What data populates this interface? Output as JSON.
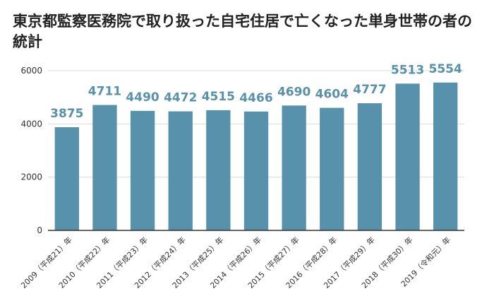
{
  "chart_data": {
    "type": "bar",
    "title": "東京都監察医務院で取り扱った自宅住居で亡くなった単身世帯の者の統計",
    "xlabel": "",
    "ylabel": "",
    "categories": [
      "2009（平成21）年",
      "2010（平成22）年",
      "2011（平成23）年",
      "2012（平成24）年",
      "2013（平成25）年",
      "2014（平成26）年",
      "2015（平成27）年",
      "2016（平成28）年",
      "2017（平成29）年",
      "2018（平成30）年",
      "2019（令和元）年"
    ],
    "values": [
      3875,
      4711,
      4490,
      4472,
      4515,
      4466,
      4690,
      4604,
      4777,
      5513,
      5554
    ],
    "ylim": [
      0,
      6000
    ],
    "yticks": [
      0,
      2000,
      4000,
      6000
    ],
    "grid": true,
    "legend": "none",
    "colors": {
      "bar": "#5891ab",
      "label": "#5891ab",
      "grid": "#d9d9d9",
      "axis": "#333333"
    }
  }
}
